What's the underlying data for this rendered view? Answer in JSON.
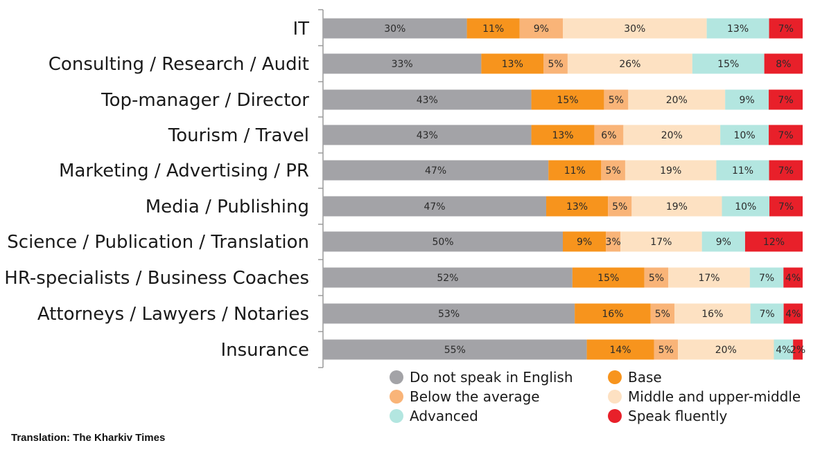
{
  "chart_data": {
    "type": "bar",
    "orientation": "horizontal",
    "stacked": true,
    "categories": [
      "IT",
      "Consulting / Research / Audit",
      "Top-manager / Director",
      "Tourism / Travel",
      "Marketing / Advertising / PR",
      "Media / Publishing",
      "Science / Publication / Translation",
      "HR-specialists / Business Coaches",
      "Attorneys / Lawyers / Notaries",
      "Insurance"
    ],
    "series": [
      {
        "name": "Do not speak in English",
        "color": "#a3a3a7",
        "values": [
          30,
          33,
          43,
          43,
          47,
          47,
          50,
          52,
          53,
          55
        ]
      },
      {
        "name": "Base",
        "color": "#f7941d",
        "values": [
          11,
          13,
          15,
          13,
          11,
          13,
          9,
          15,
          16,
          14
        ]
      },
      {
        "name": "Below the average",
        "color": "#f9b478",
        "values": [
          9,
          5,
          5,
          6,
          5,
          5,
          3,
          5,
          5,
          5
        ]
      },
      {
        "name": "Middle and upper-middle",
        "color": "#fde1c2",
        "values": [
          30,
          26,
          20,
          20,
          19,
          19,
          17,
          17,
          16,
          20
        ]
      },
      {
        "name": "Advanced",
        "color": "#b3e6e0",
        "values": [
          13,
          15,
          9,
          10,
          11,
          10,
          9,
          7,
          7,
          4
        ]
      },
      {
        "name": "Speak fluently",
        "color": "#e8202a",
        "values": [
          7,
          8,
          7,
          7,
          7,
          7,
          12,
          4,
          4,
          2
        ]
      }
    ],
    "value_suffix": "%",
    "legend_placement": "bottom",
    "grid": false
  },
  "credit": "Translation: The Kharkiv Times"
}
